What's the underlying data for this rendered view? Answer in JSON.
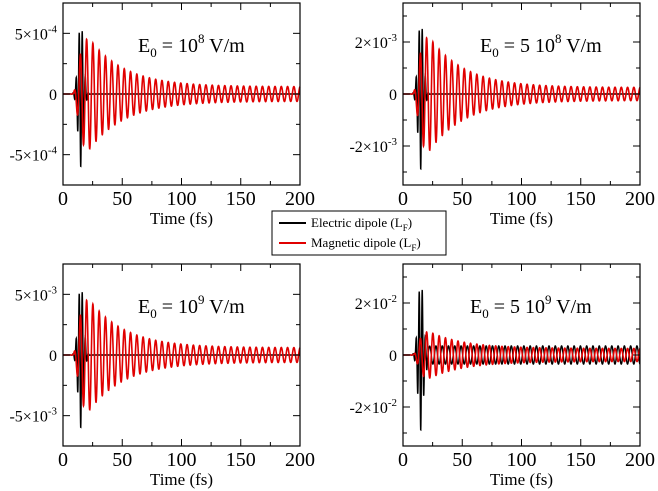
{
  "figure": {
    "legend": {
      "entries": [
        {
          "label": "Electric dipole (L",
          "sub": "F",
          "tail": ")",
          "color": "#000000"
        },
        {
          "label": "Magnetic dipole (L",
          "sub": "F",
          "tail": ")",
          "color": "#e00000"
        }
      ]
    }
  },
  "chart_data": [
    {
      "type": "line",
      "annotation": {
        "base": "E",
        "sub": "0",
        "prefix": " = 10",
        "sup": "8",
        "unit": " V/m"
      },
      "xlabel": "Time (fs)",
      "xlim": [
        0,
        200
      ],
      "xticks": [
        "0",
        "50",
        "100",
        "150",
        "200"
      ],
      "ylim": [
        -0.00075,
        0.00075
      ],
      "yticks": [
        {
          "value": 0.0005,
          "mant": "5×10",
          "exp": "-4"
        },
        {
          "value": 0,
          "mant": "0",
          "exp": ""
        },
        {
          "value": -0.0005,
          "mant": "-5×10",
          "exp": "-4"
        }
      ],
      "series": [
        {
          "name": "Electric dipole (LF)",
          "color": "#000000",
          "peak": 0.0006,
          "center_fs": 15,
          "width_fs": 3.2,
          "period_fs": 2.6,
          "tail": 0
        },
        {
          "name": "Magnetic dipole (LF)",
          "color": "#e00000",
          "peak": 0.00046,
          "onset_fs": 14,
          "period_fs": 5.3,
          "decay_fs": 30,
          "tail": 6e-05
        }
      ]
    },
    {
      "type": "line",
      "annotation": {
        "base": "E",
        "sub": "0",
        "prefix": " = 5 10",
        "sup": "8",
        "unit": " V/m"
      },
      "xlabel": "Time (fs)",
      "xlim": [
        0,
        200
      ],
      "xticks": [
        "0",
        "50",
        "100",
        "150",
        "200"
      ],
      "ylim": [
        -0.0035,
        0.0035
      ],
      "yticks": [
        {
          "value": 0.002,
          "mant": "2×10",
          "exp": "-3"
        },
        {
          "value": 0,
          "mant": "0",
          "exp": ""
        },
        {
          "value": -0.002,
          "mant": "-2×10",
          "exp": "-3"
        }
      ],
      "series": [
        {
          "name": "Electric dipole (LF)",
          "color": "#000000",
          "peak": 0.0029,
          "center_fs": 15,
          "width_fs": 3.2,
          "period_fs": 2.6,
          "tail": 0
        },
        {
          "name": "Magnetic dipole (LF)",
          "color": "#e00000",
          "peak": 0.0022,
          "onset_fs": 14,
          "period_fs": 5.3,
          "decay_fs": 30,
          "tail": 0.00025
        }
      ]
    },
    {
      "type": "line",
      "annotation": {
        "base": "E",
        "sub": "0",
        "prefix": " = 10",
        "sup": "9",
        "unit": " V/m"
      },
      "xlabel": "Time (fs)",
      "xlim": [
        0,
        200
      ],
      "xticks": [
        "0",
        "50",
        "100",
        "150",
        "200"
      ],
      "ylim": [
        -0.0075,
        0.0075
      ],
      "yticks": [
        {
          "value": 0.005,
          "mant": "5×10",
          "exp": "-3"
        },
        {
          "value": 0,
          "mant": "0",
          "exp": ""
        },
        {
          "value": -0.005,
          "mant": "-5×10",
          "exp": "-3"
        }
      ],
      "series": [
        {
          "name": "Electric dipole (LF)",
          "color": "#000000",
          "peak": 0.006,
          "center_fs": 15,
          "width_fs": 3.2,
          "period_fs": 2.6,
          "tail": 0
        },
        {
          "name": "Magnetic dipole (LF)",
          "color": "#e00000",
          "peak": 0.0046,
          "onset_fs": 14,
          "period_fs": 5.3,
          "decay_fs": 30,
          "tail": 0.0006
        }
      ]
    },
    {
      "type": "line",
      "annotation": {
        "base": "E",
        "sub": "0",
        "prefix": " = 5 10",
        "sup": "9",
        "unit": " V/m"
      },
      "xlabel": "Time (fs)",
      "xlim": [
        0,
        200
      ],
      "xticks": [
        "0",
        "50",
        "100",
        "150",
        "200"
      ],
      "ylim": [
        -0.035,
        0.035
      ],
      "yticks": [
        {
          "value": 0.02,
          "mant": "2×10",
          "exp": "-2"
        },
        {
          "value": 0,
          "mant": "0",
          "exp": ""
        },
        {
          "value": -0.02,
          "mant": "-2×10",
          "exp": "-2"
        }
      ],
      "series": [
        {
          "name": "Electric dipole (LF)",
          "color": "#000000",
          "peak": 0.029,
          "center_fs": 15,
          "width_fs": 3.2,
          "period_fs": 2.6,
          "tail": 0.0035
        },
        {
          "name": "Magnetic dipole (LF)",
          "color": "#e00000",
          "peak": 0.009,
          "onset_fs": 14,
          "period_fs": 5.3,
          "decay_fs": 30,
          "tail": 0.0025
        }
      ]
    }
  ]
}
